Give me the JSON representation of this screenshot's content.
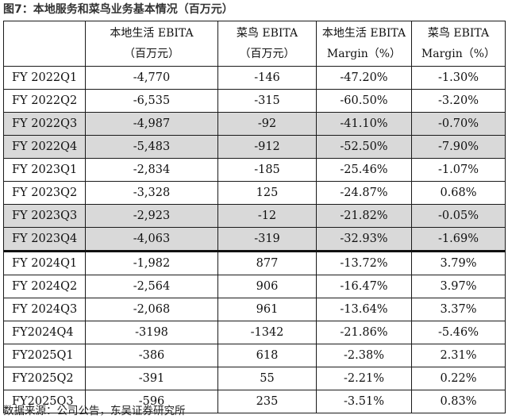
{
  "title": "图7：本地服务和菜鸟业务基本情况（百万元）",
  "headers": [
    {
      "line1": "",
      "line2": ""
    },
    {
      "line1": "本地生活 EBITA",
      "line2": "（百万元）"
    },
    {
      "line1": "菜鸟 EBITA",
      "line2": "（百万元）"
    },
    {
      "line1": "本地生活 EBITA",
      "line2": "Margin（%）"
    },
    {
      "line1": "菜鸟 EBITA",
      "line2": "Margin（%）"
    }
  ],
  "rows": [
    {
      "period": "FY 2022Q1",
      "local_ebita": "-4,770",
      "cainiao_ebita": "-146",
      "local_margin": "-47.20%",
      "cainiao_margin": "-1.30%",
      "shaded": false
    },
    {
      "period": "FY 2022Q2",
      "local_ebita": "-6,535",
      "cainiao_ebita": "-315",
      "local_margin": "-60.50%",
      "cainiao_margin": "-3.20%",
      "shaded": false
    },
    {
      "period": "FY 2022Q3",
      "local_ebita": "-4,987",
      "cainiao_ebita": "-92",
      "local_margin": "-41.10%",
      "cainiao_margin": "-0.70%",
      "shaded": true
    },
    {
      "period": "FY 2022Q4",
      "local_ebita": "-5,483",
      "cainiao_ebita": "-912",
      "local_margin": "-52.50%",
      "cainiao_margin": "-7.90%",
      "shaded": true
    },
    {
      "period": "FY 2023Q1",
      "local_ebita": "-2,834",
      "cainiao_ebita": "-185",
      "local_margin": "-25.46%",
      "cainiao_margin": "-1.07%",
      "shaded": false
    },
    {
      "period": "FY 2023Q2",
      "local_ebita": "-3,328",
      "cainiao_ebita": "125",
      "local_margin": "-24.87%",
      "cainiao_margin": "0.68%",
      "shaded": false
    },
    {
      "period": "FY 2023Q3",
      "local_ebita": "-2,923",
      "cainiao_ebita": "-12",
      "local_margin": "-21.82%",
      "cainiao_margin": "-0.05%",
      "shaded": true
    },
    {
      "period": "FY 2023Q4",
      "local_ebita": "-4,063",
      "cainiao_ebita": "-319",
      "local_margin": "-32.93%",
      "cainiao_margin": "-1.69%",
      "shaded": true
    },
    {
      "period": "FY 2024Q1",
      "local_ebita": "-1,982",
      "cainiao_ebita": "877",
      "local_margin": "-13.72%",
      "cainiao_margin": "3.79%",
      "shaded": false,
      "thick_top": true
    },
    {
      "period": "FY 2024Q2",
      "local_ebita": "-2,564",
      "cainiao_ebita": "906",
      "local_margin": "-16.47%",
      "cainiao_margin": "3.97%",
      "shaded": false
    },
    {
      "period": "FY 2024Q3",
      "local_ebita": "-2,068",
      "cainiao_ebita": "961",
      "local_margin": "-13.64%",
      "cainiao_margin": "3.37%",
      "shaded": false
    },
    {
      "period": "FY2024Q4",
      "local_ebita": "-3198",
      "cainiao_ebita": "-1342",
      "local_margin": "-21.86%",
      "cainiao_margin": "-5.46%",
      "shaded": false
    },
    {
      "period": "FY2025Q1",
      "local_ebita": "-386",
      "cainiao_ebita": "618",
      "local_margin": "-2.38%",
      "cainiao_margin": "2.31%",
      "shaded": false
    },
    {
      "period": "FY2025Q2",
      "local_ebita": "-391",
      "cainiao_ebita": "55",
      "local_margin": "-2.21%",
      "cainiao_margin": "0.22%",
      "shaded": false
    },
    {
      "period": "FY2025Q3",
      "local_ebita": "-596",
      "cainiao_ebita": "235",
      "local_margin": "-3.51%",
      "cainiao_margin": "0.83%",
      "shaded": false
    }
  ],
  "source": "数据来源：公司公告，东吴证券研究所",
  "colors": {
    "shaded_row": "#d9d9d9",
    "border": "#1a1a1a",
    "title": "#333333"
  }
}
